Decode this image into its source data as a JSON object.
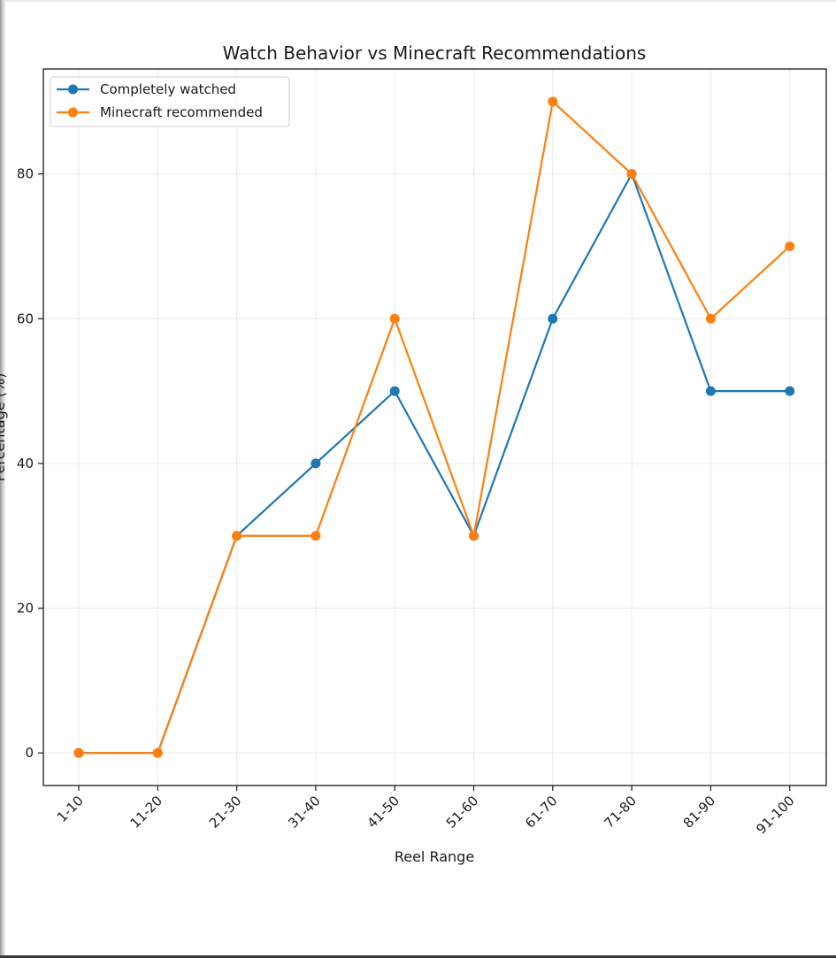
{
  "chart_data": {
    "type": "line",
    "title": "Watch Behavior vs Minecraft Recommendations",
    "xlabel": "Reel Range",
    "ylabel": "Percentage (%)",
    "categories": [
      "1-10",
      "11-20",
      "21-30",
      "31-40",
      "41-50",
      "51-60",
      "61-70",
      "71-80",
      "81-90",
      "91-100"
    ],
    "series": [
      {
        "name": "Completely watched",
        "color": "#1f77b4",
        "values": [
          0,
          0,
          30,
          40,
          50,
          30,
          60,
          80,
          50,
          50
        ]
      },
      {
        "name": "Minecraft recommended",
        "color": "#ff7f0e",
        "values": [
          0,
          0,
          30,
          30,
          60,
          30,
          90,
          80,
          60,
          70
        ]
      }
    ],
    "ylim": [
      -4.5,
      94.5
    ],
    "yticks": [
      0,
      20,
      40,
      60,
      80
    ],
    "grid": true,
    "legend_position": "upper-left"
  }
}
